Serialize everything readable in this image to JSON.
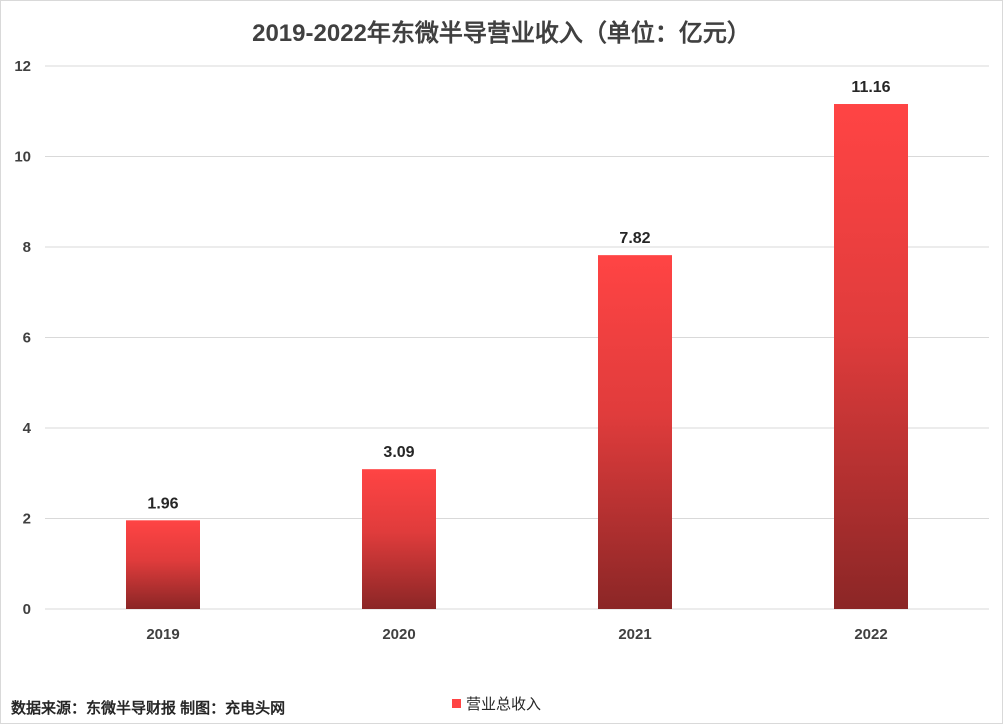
{
  "chart_data": {
    "type": "bar",
    "title": "2019-2022年东微半导营业收入（单位：亿元）",
    "categories": [
      "2019",
      "2020",
      "2021",
      "2022"
    ],
    "series": [
      {
        "name": "营业总收入",
        "values": [
          1.96,
          3.09,
          7.82,
          11.16
        ]
      }
    ],
    "data_labels": [
      "1.96",
      "3.09",
      "7.82",
      "11.16"
    ],
    "ylim": [
      0,
      12
    ],
    "yticks": [
      0,
      2,
      4,
      6,
      8,
      10,
      12
    ],
    "grid": true,
    "legend_position": "bottom",
    "colors": {
      "bar_top": "#ff4444",
      "bar_bottom": "#8b2626",
      "grid": "#d9d9d9"
    }
  },
  "footer": {
    "source_note": "数据来源：东微半导财报 制图：充电头网"
  }
}
